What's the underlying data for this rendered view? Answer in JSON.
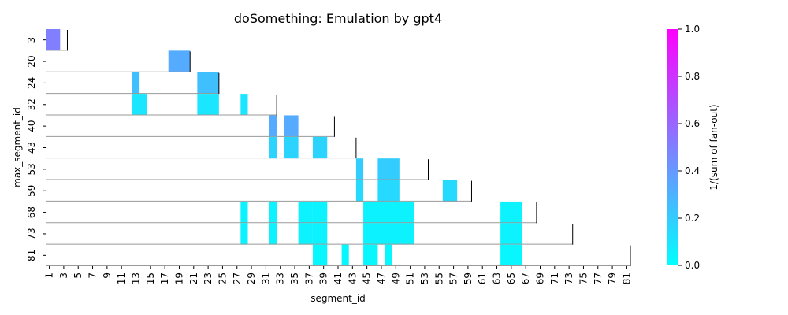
{
  "chart_data": {
    "type": "heatmap",
    "title": "doSomething: Emulation by gpt4",
    "xlabel": "segment_id",
    "ylabel": "max_segment_id",
    "x_range": [
      1,
      81
    ],
    "x_tick_labels": [
      "1",
      "3",
      "5",
      "7",
      "9",
      "11",
      "13",
      "15",
      "17",
      "19",
      "21",
      "23",
      "25",
      "27",
      "29",
      "31",
      "33",
      "35",
      "37",
      "39",
      "41",
      "43",
      "45",
      "47",
      "49",
      "51",
      "53",
      "55",
      "57",
      "59",
      "61",
      "63",
      "65",
      "67",
      "69",
      "71",
      "73",
      "75",
      "77",
      "79",
      "81"
    ],
    "rows": [
      {
        "label": "3",
        "max": 3,
        "cells": [
          {
            "from": 1,
            "to": 2,
            "value": 0.5
          }
        ]
      },
      {
        "label": "20",
        "max": 20,
        "cells": [
          {
            "from": 18,
            "to": 20,
            "value": 0.33
          }
        ]
      },
      {
        "label": "24",
        "max": 24,
        "cells": [
          {
            "from": 13,
            "to": 13,
            "value": 0.25
          },
          {
            "from": 22,
            "to": 24,
            "value": 0.25
          }
        ]
      },
      {
        "label": "32",
        "max": 32,
        "cells": [
          {
            "from": 13,
            "to": 14,
            "value": 0.1
          },
          {
            "from": 22,
            "to": 24,
            "value": 0.1
          },
          {
            "from": 28,
            "to": 28,
            "value": 0.1
          }
        ]
      },
      {
        "label": "40",
        "max": 40,
        "cells": [
          {
            "from": 32,
            "to": 32,
            "value": 0.33
          },
          {
            "from": 34,
            "to": 35,
            "value": 0.33
          }
        ]
      },
      {
        "label": "43",
        "max": 43,
        "cells": [
          {
            "from": 32,
            "to": 32,
            "value": 0.17
          },
          {
            "from": 34,
            "to": 35,
            "value": 0.17
          },
          {
            "from": 38,
            "to": 39,
            "value": 0.17
          }
        ]
      },
      {
        "label": "53",
        "max": 53,
        "cells": [
          {
            "from": 44,
            "to": 44,
            "value": 0.2
          },
          {
            "from": 47,
            "to": 49,
            "value": 0.2
          }
        ]
      },
      {
        "label": "59",
        "max": 59,
        "cells": [
          {
            "from": 44,
            "to": 44,
            "value": 0.15
          },
          {
            "from": 47,
            "to": 49,
            "value": 0.15
          },
          {
            "from": 56,
            "to": 57,
            "value": 0.15
          }
        ]
      },
      {
        "label": "68",
        "max": 68,
        "cells": [
          {
            "from": 28,
            "to": 28,
            "value": 0.05
          },
          {
            "from": 32,
            "to": 32,
            "value": 0.05
          },
          {
            "from": 36,
            "to": 37,
            "value": 0.05
          },
          {
            "from": 38,
            "to": 39,
            "value": 0.05
          },
          {
            "from": 45,
            "to": 51,
            "value": 0.05
          },
          {
            "from": 64,
            "to": 66,
            "value": 0.05
          }
        ]
      },
      {
        "label": "73",
        "max": 73,
        "cells": [
          {
            "from": 28,
            "to": 28,
            "value": 0.05
          },
          {
            "from": 32,
            "to": 32,
            "value": 0.05
          },
          {
            "from": 36,
            "to": 37,
            "value": 0.05
          },
          {
            "from": 38,
            "to": 39,
            "value": 0.05
          },
          {
            "from": 45,
            "to": 51,
            "value": 0.05
          },
          {
            "from": 64,
            "to": 66,
            "value": 0.05
          }
        ]
      },
      {
        "label": "81",
        "max": 81,
        "cells": [
          {
            "from": 38,
            "to": 39,
            "value": 0.03
          },
          {
            "from": 42,
            "to": 42,
            "value": 0.03
          },
          {
            "from": 45,
            "to": 46,
            "value": 0.03
          },
          {
            "from": 48,
            "to": 48,
            "value": 0.03
          },
          {
            "from": 64,
            "to": 66,
            "value": 0.03
          }
        ]
      }
    ],
    "colorbar": {
      "label": "1/(sum of fan-out)",
      "colormap": "cool",
      "range": [
        0.0,
        1.0
      ],
      "ticks": [
        "0.0",
        "0.2",
        "0.4",
        "0.6",
        "0.8",
        "1.0"
      ],
      "color_low": "#00ffff",
      "color_high": "#ff00ff"
    },
    "grid": false
  }
}
